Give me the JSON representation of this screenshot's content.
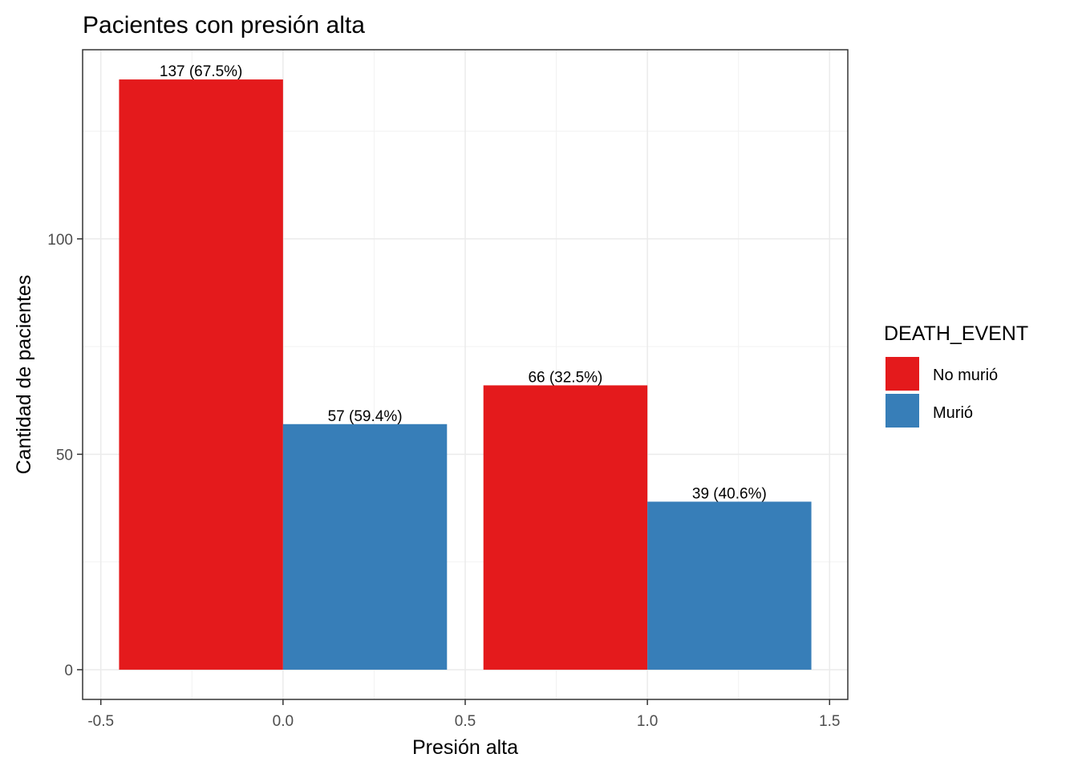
{
  "chart_data": {
    "type": "bar",
    "title": "Pacientes con presión alta",
    "xlabel": "Presión alta",
    "ylabel": "Cantidad de pacientes",
    "x_ticks": [
      "-0.5",
      "0.0",
      "0.5",
      "1.0",
      "1.5"
    ],
    "y_ticks": [
      "0",
      "50",
      "100"
    ],
    "xlim": [
      -0.55,
      1.55
    ],
    "ylim": [
      -6.9,
      143.9
    ],
    "grid": true,
    "legend": {
      "title": "DEATH_EVENT",
      "position": "right",
      "entries": [
        {
          "label": "No murió",
          "color": "#E41A1C"
        },
        {
          "label": "Murió",
          "color": "#377EB8"
        }
      ]
    },
    "bars": [
      {
        "x_center": -0.225,
        "width": 0.45,
        "value": 137,
        "series": "No murió",
        "color": "#E41A1C",
        "label": "137 (67.5%)"
      },
      {
        "x_center": 0.225,
        "width": 0.45,
        "value": 57,
        "series": "Murió",
        "color": "#377EB8",
        "label": "57 (59.4%)"
      },
      {
        "x_center": 0.775,
        "width": 0.45,
        "value": 66,
        "series": "No murió",
        "color": "#E41A1C",
        "label": "66 (32.5%)"
      },
      {
        "x_center": 1.225,
        "width": 0.45,
        "value": 39,
        "series": "Murió",
        "color": "#377EB8",
        "label": "39 (40.6%)"
      }
    ]
  }
}
